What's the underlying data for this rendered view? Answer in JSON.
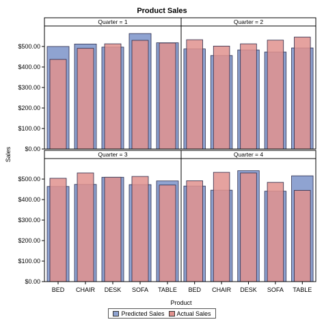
{
  "chart_data": {
    "type": "bar",
    "title": "Product Sales",
    "xlabel": "Product",
    "ylabel": "Sales",
    "ylim": [
      0,
      600
    ],
    "yticks": [
      "$0.00",
      "$100.00",
      "$200.00",
      "$300.00",
      "$400.00",
      "$500.00"
    ],
    "categories": [
      "BED",
      "CHAIR",
      "DESK",
      "SOFA",
      "TABLE"
    ],
    "colors": {
      "predicted": "#8fa3d1",
      "actual": "#e1928e",
      "edge": "#2a2a4a"
    },
    "legend": [
      "Predicted Sales",
      "Actual Sales"
    ],
    "legend_position": "bottom",
    "panels": [
      {
        "label": "Quarter = 1",
        "series": [
          {
            "name": "Predicted Sales",
            "values": [
              500,
              512,
              497,
              563,
              518
            ]
          },
          {
            "name": "Actual Sales",
            "values": [
              437,
              491,
              513,
              530,
              517
            ]
          }
        ]
      },
      {
        "label": "Quarter = 2",
        "series": [
          {
            "name": "Predicted Sales",
            "values": [
              488,
              456,
              483,
              473,
              493
            ]
          },
          {
            "name": "Actual Sales",
            "values": [
              533,
              502,
              513,
              531,
              546
            ]
          }
        ]
      },
      {
        "label": "Quarter = 3",
        "series": [
          {
            "name": "Predicted Sales",
            "values": [
              464,
              474,
              509,
              473,
              491
            ]
          },
          {
            "name": "Actual Sales",
            "values": [
              504,
              530,
              509,
              513,
              471
            ]
          }
        ]
      },
      {
        "label": "Quarter = 4",
        "series": [
          {
            "name": "Predicted Sales",
            "values": [
              466,
              446,
              541,
              441,
              516
            ]
          },
          {
            "name": "Actual Sales",
            "values": [
              492,
              533,
              530,
              484,
              445
            ]
          }
        ]
      }
    ]
  }
}
